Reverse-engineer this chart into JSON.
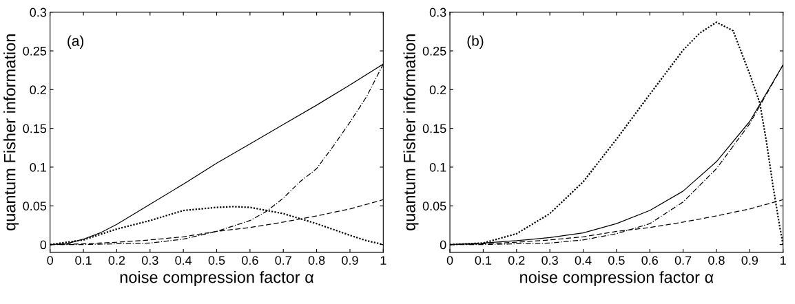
{
  "chart_data": [
    {
      "type": "line",
      "xlabel": "noise compression factor α",
      "ylabel": "quantum Fisher information",
      "annotations": [
        "(a)"
      ],
      "xlim": [
        0,
        1
      ],
      "ylim": [
        -0.01,
        0.3
      ],
      "xticks": [
        0,
        0.1,
        0.2,
        0.3,
        0.4,
        0.5,
        0.6,
        0.7,
        0.8,
        0.9,
        1
      ],
      "yticks": [
        0,
        0.05,
        0.1,
        0.15,
        0.2,
        0.25,
        0.3
      ],
      "series": [
        {
          "color": "#000000",
          "line_style": "solid",
          "x": [
            0,
            0.05,
            0.1,
            0.15,
            0.2,
            0.3,
            0.4,
            0.5,
            0.6,
            0.7,
            0.8,
            0.9,
            1
          ],
          "values": [
            0,
            0.001,
            0.007,
            0.015,
            0.026,
            0.052,
            0.078,
            0.105,
            0.13,
            0.155,
            0.18,
            0.206,
            0.233
          ]
        },
        {
          "color": "#000000",
          "line_style": "dotted",
          "x": [
            0,
            0.1,
            0.2,
            0.3,
            0.4,
            0.5,
            0.55,
            0.6,
            0.7,
            0.8,
            0.9,
            0.95,
            1
          ],
          "values": [
            0,
            0.006,
            0.02,
            0.031,
            0.044,
            0.048,
            0.049,
            0.048,
            0.04,
            0.027,
            0.012,
            0.005,
            0
          ]
        },
        {
          "color": "#000000",
          "line_style": "dashed",
          "x": [
            0,
            0.1,
            0.2,
            0.3,
            0.4,
            0.5,
            0.6,
            0.7,
            0.8,
            0.9,
            1
          ],
          "values": [
            0,
            0.001,
            0.003,
            0.006,
            0.01,
            0.017,
            0.022,
            0.029,
            0.037,
            0.046,
            0.058
          ]
        },
        {
          "color": "#000000",
          "line_style": "dashdot",
          "x": [
            0,
            0.1,
            0.2,
            0.3,
            0.4,
            0.5,
            0.6,
            0.65,
            0.7,
            0.75,
            0.8,
            0.85,
            0.9,
            0.95,
            1
          ],
          "values": [
            0,
            0,
            0.001,
            0.002,
            0.007,
            0.017,
            0.031,
            0.043,
            0.06,
            0.081,
            0.098,
            0.127,
            0.158,
            0.191,
            0.233
          ]
        }
      ]
    },
    {
      "type": "line",
      "xlabel": "noise compression factor α",
      "ylabel": "quantum Fisher information",
      "annotations": [
        "(b)"
      ],
      "xlim": [
        0,
        1
      ],
      "ylim": [
        -0.01,
        0.3
      ],
      "xticks": [
        0,
        0.1,
        0.2,
        0.3,
        0.4,
        0.5,
        0.6,
        0.7,
        0.8,
        0.9,
        1
      ],
      "yticks": [
        0,
        0.05,
        0.1,
        0.15,
        0.2,
        0.25,
        0.3
      ],
      "series": [
        {
          "color": "#000000",
          "line_style": "solid",
          "x": [
            0,
            0.1,
            0.2,
            0.3,
            0.4,
            0.5,
            0.6,
            0.7,
            0.8,
            0.9,
            1
          ],
          "values": [
            0,
            0.002,
            0.005,
            0.009,
            0.015,
            0.027,
            0.044,
            0.069,
            0.107,
            0.159,
            0.232
          ]
        },
        {
          "color": "#000000",
          "line_style": "dotted",
          "x": [
            0,
            0.1,
            0.2,
            0.3,
            0.4,
            0.5,
            0.6,
            0.7,
            0.75,
            0.8,
            0.85,
            0.9,
            0.93,
            0.95,
            0.97,
            0.99,
            1
          ],
          "values": [
            0,
            0.002,
            0.014,
            0.04,
            0.081,
            0.136,
            0.194,
            0.251,
            0.273,
            0.287,
            0.276,
            0.22,
            0.183,
            0.133,
            0.075,
            0.023,
            0
          ]
        },
        {
          "color": "#000000",
          "line_style": "dashed",
          "x": [
            0,
            0.1,
            0.2,
            0.3,
            0.4,
            0.5,
            0.6,
            0.7,
            0.8,
            0.9,
            1
          ],
          "values": [
            0,
            0.001,
            0.003,
            0.006,
            0.01,
            0.017,
            0.022,
            0.029,
            0.037,
            0.046,
            0.058
          ]
        },
        {
          "color": "#000000",
          "line_style": "dashdot",
          "x": [
            0,
            0.1,
            0.2,
            0.3,
            0.4,
            0.5,
            0.6,
            0.7,
            0.8,
            0.9,
            0.95,
            1
          ],
          "values": [
            0,
            0,
            0.001,
            0.002,
            0.006,
            0.014,
            0.027,
            0.055,
            0.098,
            0.156,
            0.194,
            0.232
          ]
        }
      ]
    }
  ]
}
